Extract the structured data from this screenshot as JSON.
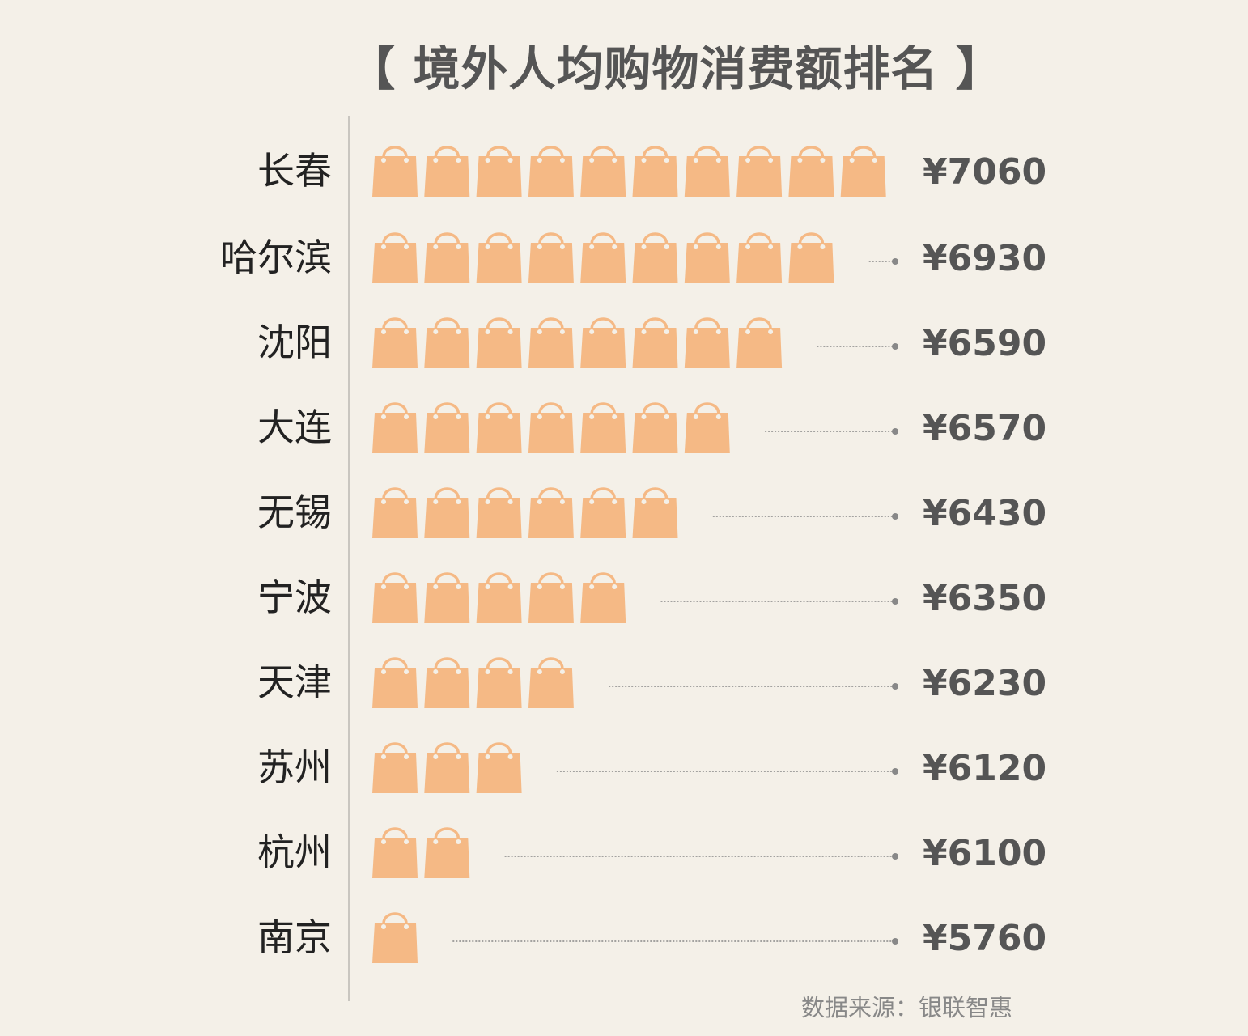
{
  "chart_data": {
    "type": "pictograph-bar",
    "title": "【 境外人均购物消费额排名 】",
    "categories": [
      "长春",
      "哈尔滨",
      "沈阳",
      "大连",
      "无锡",
      "宁波",
      "天津",
      "苏州",
      "杭州",
      "南京"
    ],
    "values": [
      7060,
      6930,
      6590,
      6570,
      6430,
      6350,
      6230,
      6120,
      6100,
      5760
    ],
    "value_labels": [
      "¥7060",
      "¥6930",
      "¥6590",
      "¥6570",
      "¥6430",
      "¥6350",
      "¥6230",
      "¥6120",
      "¥6100",
      "¥5760"
    ],
    "icon_counts": [
      10,
      9,
      8,
      7,
      6,
      5,
      4,
      3,
      2,
      1
    ],
    "icon": "shopping-bag-icon",
    "source": "数据来源：银联智惠",
    "colors": {
      "bag": "#f5b985",
      "text": "#222222",
      "value": "#555555",
      "axis": "#c9c6c0",
      "leader": "#888888",
      "background": "#f4f0e8"
    }
  }
}
